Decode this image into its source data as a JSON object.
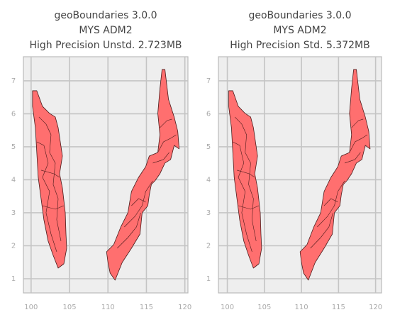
{
  "chart_data": [
    {
      "type": "map",
      "title": [
        "geoBoundaries 3.0.0",
        "MYS ADM2",
        "High Precision Unstd. 2.723MB"
      ],
      "xlim": [
        99,
        120.4
      ],
      "ylim": [
        0.57,
        7.73
      ],
      "xticks": [
        100,
        105,
        110,
        115,
        120
      ],
      "yticks": [
        1,
        2,
        3,
        4,
        5,
        6,
        7
      ],
      "grid": true,
      "color": "#ff6f6f"
    },
    {
      "type": "map",
      "title": [
        "geoBoundaries 3.0.0",
        "MYS ADM2",
        "High Precision Std. 5.372MB"
      ],
      "xlim": [
        98.8,
        120.8
      ],
      "ylim": [
        0.57,
        7.73
      ],
      "xticks": [
        100,
        105,
        110,
        115,
        120
      ],
      "yticks": [
        1,
        2,
        3,
        4,
        5,
        6,
        7
      ],
      "grid": true,
      "color": "#ff6f6f"
    }
  ]
}
